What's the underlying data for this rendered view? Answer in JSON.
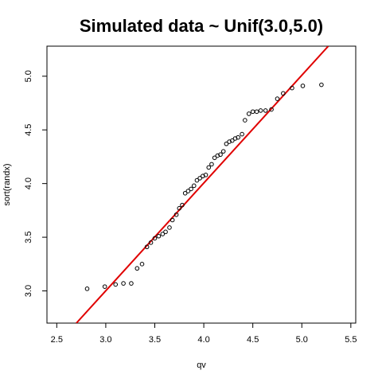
{
  "chart_data": {
    "type": "scatter",
    "title": "Simulated data ~ Unif(3.0,5.0)",
    "xlabel": "qv",
    "ylabel": "sort(randx)",
    "xlim": [
      2.4,
      5.55
    ],
    "ylim": [
      2.7,
      5.28
    ],
    "xticks": [
      "2.5",
      "3.0",
      "3.5",
      "4.0",
      "4.5",
      "5.0",
      "5.5"
    ],
    "yticks": [
      "3.0",
      "3.5",
      "4.0",
      "4.5",
      "5.0"
    ],
    "grid": false,
    "line": {
      "color": "#e00000",
      "x": [
        2.7,
        5.27
      ],
      "y": [
        2.7,
        5.28
      ]
    },
    "points_color": "#000000",
    "series": [
      {
        "x": [
          2.81,
          2.99,
          3.1,
          3.18,
          3.26,
          3.32,
          3.37,
          3.42,
          3.46,
          3.5,
          3.54,
          3.58,
          3.61,
          3.65,
          3.68,
          3.72,
          3.75,
          3.78,
          3.81,
          3.84,
          3.87,
          3.9,
          3.93,
          3.96,
          3.99,
          4.02,
          4.05,
          4.08,
          4.11,
          4.14,
          4.17,
          4.2,
          4.23,
          4.26,
          4.29,
          4.32,
          4.35,
          4.39,
          4.42,
          4.46,
          4.5,
          4.54,
          4.58,
          4.63,
          4.69,
          4.75,
          4.81,
          4.9,
          5.01,
          5.2
        ],
        "y": [
          3.02,
          3.04,
          3.06,
          3.07,
          3.07,
          3.21,
          3.25,
          3.41,
          3.45,
          3.49,
          3.51,
          3.53,
          3.55,
          3.59,
          3.66,
          3.71,
          3.77,
          3.8,
          3.91,
          3.93,
          3.95,
          3.98,
          4.03,
          4.05,
          4.07,
          4.08,
          4.15,
          4.18,
          4.24,
          4.26,
          4.27,
          4.3,
          4.37,
          4.39,
          4.4,
          4.42,
          4.43,
          4.46,
          4.59,
          4.65,
          4.67,
          4.67,
          4.68,
          4.68,
          4.69,
          4.79,
          4.84,
          4.89,
          4.91,
          4.92
        ]
      }
    ]
  }
}
